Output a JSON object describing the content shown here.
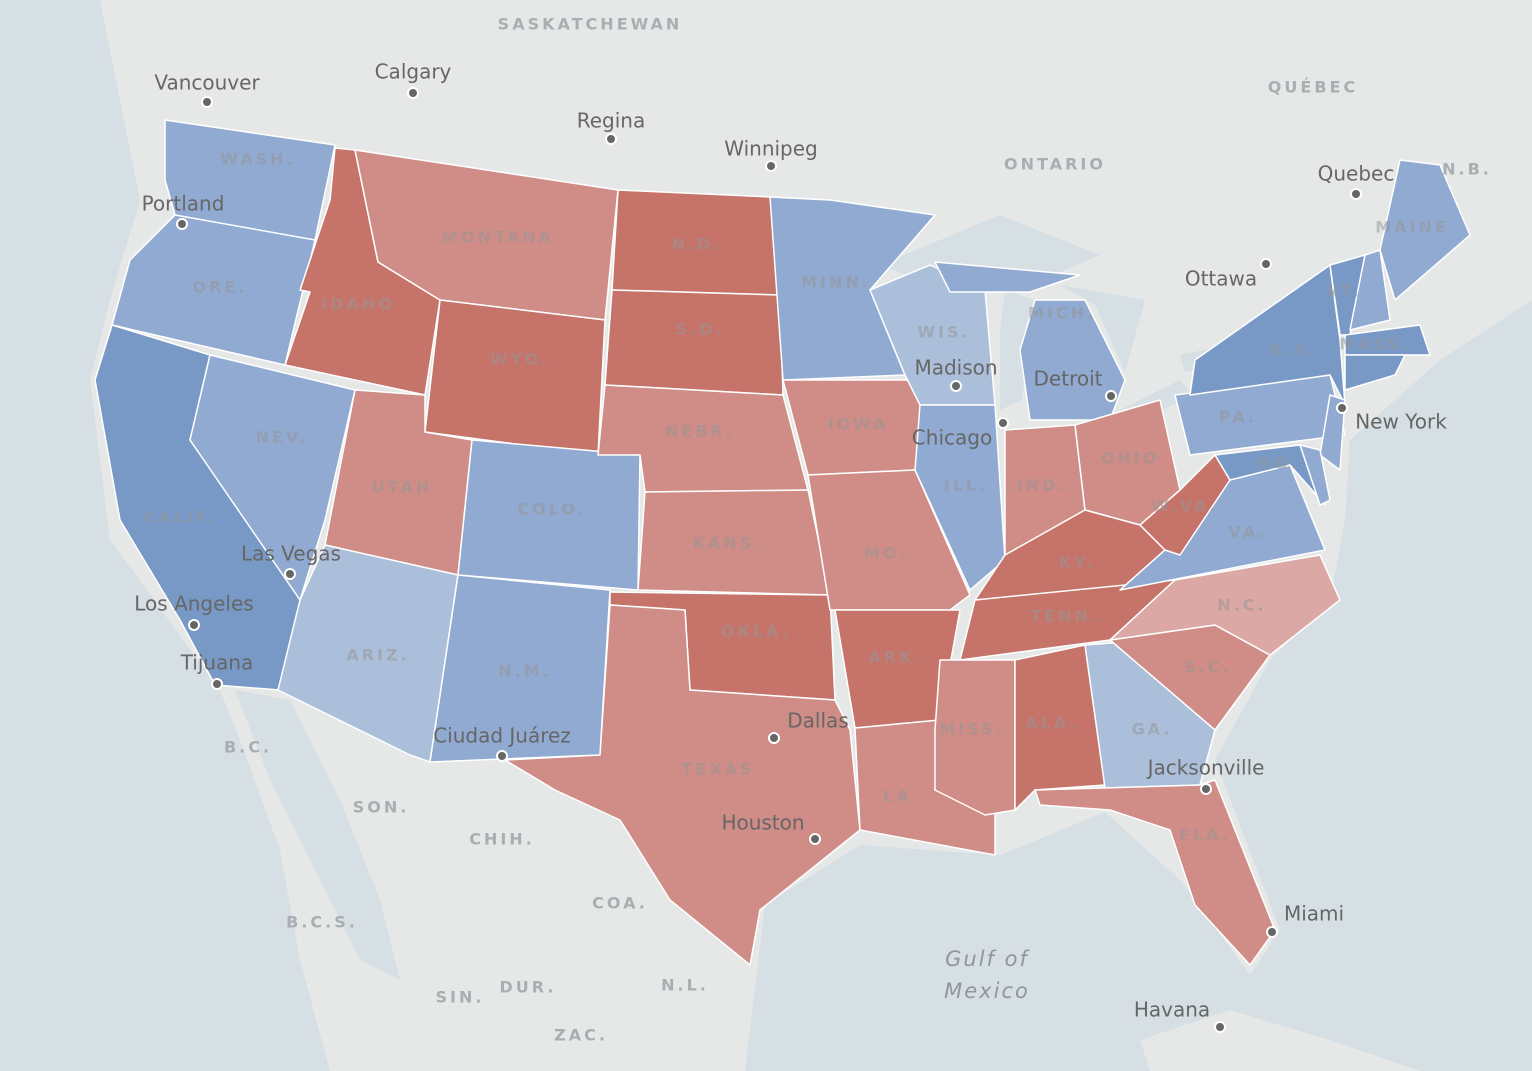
{
  "states": [
    {
      "label": "WASH.",
      "color": "#90aad2"
    },
    {
      "label": "ORE.",
      "color": "#90aad2"
    },
    {
      "label": "CALIF.",
      "color": "#7899c6"
    },
    {
      "label": "NEV.",
      "color": "#90aad2"
    },
    {
      "label": "IDAHO",
      "color": "#c6736a"
    },
    {
      "label": "MONTANA",
      "color": "#d08c86"
    },
    {
      "label": "WYO.",
      "color": "#c6736a"
    },
    {
      "label": "UTAH",
      "color": "#d08c86"
    },
    {
      "label": "COLO.",
      "color": "#90aad2"
    },
    {
      "label": "ARIZ.",
      "color": "#abbfda"
    },
    {
      "label": "N.M.",
      "color": "#90aad2"
    },
    {
      "label": "N.D.",
      "color": "#c6736a"
    },
    {
      "label": "S.D.",
      "color": "#c6736a"
    },
    {
      "label": "NEBR.",
      "color": "#d08c86"
    },
    {
      "label": "KANS.",
      "color": "#d08c86"
    },
    {
      "label": "OKLA.",
      "color": "#c6736a"
    },
    {
      "label": "TEXAS",
      "color": "#d08c86"
    },
    {
      "label": "MINN.",
      "color": "#90aad2"
    },
    {
      "label": "IOWA",
      "color": "#d08c86"
    },
    {
      "label": "MO.",
      "color": "#d08c86"
    },
    {
      "label": "ARK.",
      "color": "#c6736a"
    },
    {
      "label": "LA.",
      "color": "#d08c86"
    },
    {
      "label": "WIS.",
      "color": "#abbfda"
    },
    {
      "label": "ILL.",
      "color": "#90aad2"
    },
    {
      "label": "MICH.",
      "color": "#90aad2"
    },
    {
      "label": "IND.",
      "color": "#d08c86"
    },
    {
      "label": "OHIO",
      "color": "#d08c86"
    },
    {
      "label": "KY.",
      "color": "#c6736a"
    },
    {
      "label": "TENN.",
      "color": "#c6736a"
    },
    {
      "label": "MISS.",
      "color": "#d08c86"
    },
    {
      "label": "ALA.",
      "color": "#c6736a"
    },
    {
      "label": "GA.",
      "color": "#abbfda"
    },
    {
      "label": "FLA.",
      "color": "#d08c86"
    },
    {
      "label": "S.C.",
      "color": "#d08c86"
    },
    {
      "label": "N.C.",
      "color": "#dba8a5"
    },
    {
      "label": "VA.",
      "color": "#90aad2"
    },
    {
      "label": "W.VA.",
      "color": "#c6736a"
    },
    {
      "label": "PA.",
      "color": "#90aad2"
    },
    {
      "label": "N.Y.",
      "color": "#7899c6"
    },
    {
      "label": "MD.",
      "color": "#7899c6"
    },
    {
      "label": "VT.",
      "color": "#7899c6"
    },
    {
      "label": "MASS.",
      "color": "#7899c6"
    },
    {
      "label": "MAINE",
      "color": "#90aad2"
    },
    {
      "color": "#90aad2"
    },
    {
      "color": "#90aad2"
    },
    {
      "color": "#7899c6"
    },
    {
      "color": "#90aad2"
    }
  ],
  "cities": [
    "Vancouver",
    "Calgary",
    "Regina",
    "Winnipeg",
    "Portland",
    "Quebec",
    "Ottawa",
    "Madison",
    "Chicago",
    "Detroit",
    "New York",
    "Las Vegas",
    "Los Angeles",
    "Tijuana",
    "Dallas",
    "Ciudad Juárez",
    "Houston",
    "Jacksonville",
    "Miami",
    "Havana"
  ],
  "regions": [
    "SASKATCHEWAN",
    "ONTARIO",
    "QUÉBEC",
    "N.B.",
    "B.C.",
    "SON.",
    "CHIH.",
    "COA.",
    "B.C.S.",
    "SIN.",
    "DUR.",
    "N.L.",
    "ZAC."
  ],
  "water_labels": [
    "Gulf of",
    "Mexico"
  ]
}
